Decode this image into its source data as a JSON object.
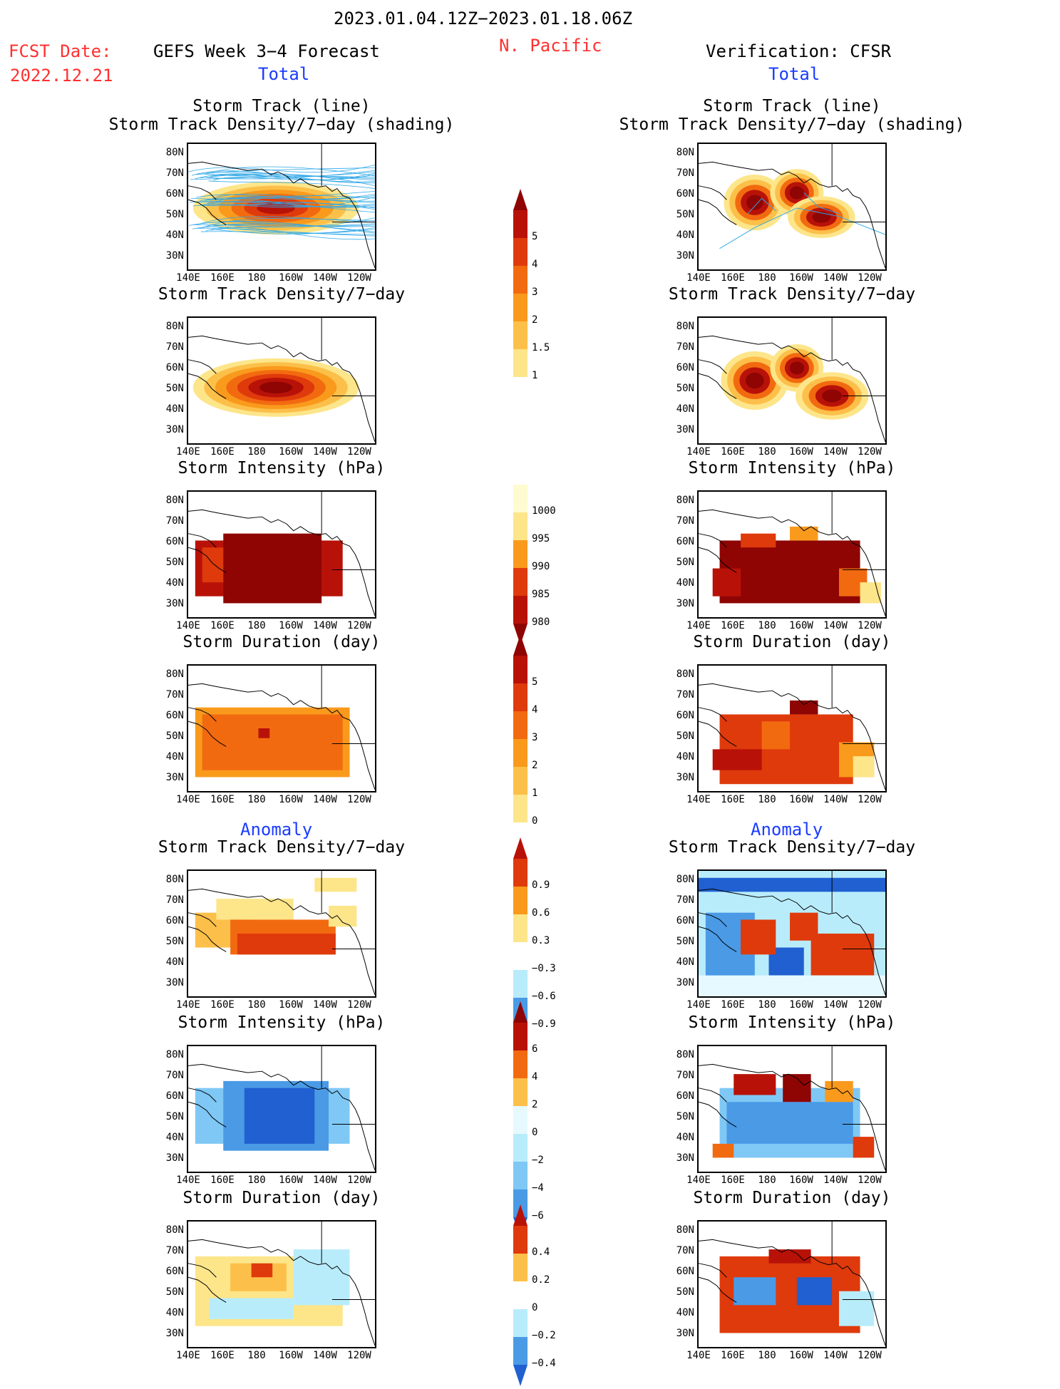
{
  "header": {
    "date_range": "2023.01.04.12Z−2023.01.18.06Z",
    "fcst_label": "FCST Date:",
    "fcst_date": "2022.12.21",
    "model_title": "GEFS Week 3−4 Forecast",
    "region": "N. Pacific",
    "verification": "Verification: CFSR",
    "left_total": "Total",
    "right_total": "Total",
    "left_anomaly": "Anomaly",
    "right_anomaly": "Anomaly"
  },
  "axes": {
    "lat_labels": [
      "80N",
      "70N",
      "60N",
      "50N",
      "40N",
      "30N"
    ],
    "lon_labels": [
      "140E",
      "160E",
      "180",
      "160W",
      "140W",
      "120W"
    ]
  },
  "panels": {
    "track_line_1": "Storm Track (line)",
    "track_line_2": "Storm Track Density/7−day (shading)",
    "density": "Storm Track Density/7−day",
    "intensity": "Storm Intensity (hPa)",
    "duration": "Storm Duration (day)"
  },
  "colorbars": {
    "density": [
      "5",
      "4",
      "3",
      "2",
      "1.5",
      "1"
    ],
    "intensity": [
      "1000",
      "995",
      "990",
      "985",
      "980"
    ],
    "duration": [
      "5",
      "4",
      "3",
      "2",
      "1",
      "0"
    ],
    "anom_density": [
      "0.9",
      "0.6",
      "0.3",
      "−0.3",
      "−0.6",
      "−0.9"
    ],
    "anom_intensity": [
      "6",
      "4",
      "2",
      "0",
      "−2",
      "−4",
      "−6"
    ],
    "anom_duration": [
      "0.4",
      "0.2",
      "0",
      "−0.2",
      "−0.4"
    ]
  },
  "colors": {
    "warm": [
      "#fff7b0",
      "#fde58a",
      "#fcc04a",
      "#f99a1c",
      "#f26a10",
      "#df3a0c",
      "#b81208",
      "#8e0504"
    ],
    "cool": [
      "#e6f9ff",
      "#b9ecfb",
      "#7fc8f5",
      "#4a9ae6",
      "#2060d0",
      "#1040b0"
    ],
    "track_line": "#30a8e8",
    "title_red": "#ff3030",
    "title_blue": "#1a3cff"
  }
}
